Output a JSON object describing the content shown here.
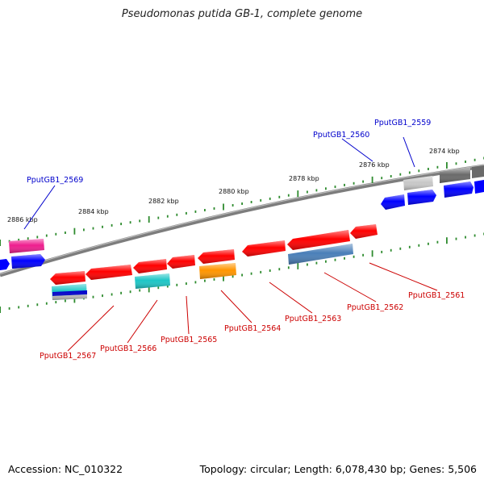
{
  "header": {
    "title": "Pseudomonas putida GB-1, complete genome"
  },
  "footer": {
    "accession": "Accession: NC_010322",
    "topology": "Topology: circular; Length: 6,078,430 bp; Genes: 5,506"
  },
  "map": {
    "ticks": [
      {
        "label": "2874 kbp"
      },
      {
        "label": "2876 kbp"
      },
      {
        "label": "2878 kbp"
      },
      {
        "label": "2880 kbp"
      },
      {
        "label": "2882 kbp"
      },
      {
        "label": "2884 kbp"
      },
      {
        "label": "2886 kbp"
      }
    ],
    "gene_labels_upper": [
      "PputGB1_2559",
      "PputGB1_2560",
      "PputGB1_2569"
    ],
    "gene_labels_lower": [
      "PputGB1_2561",
      "PputGB1_2562",
      "PputGB1_2563",
      "PputGB1_2564",
      "PputGB1_2565",
      "PputGB1_2566",
      "PputGB1_2567"
    ],
    "colors": {
      "backbone": "#808080",
      "tick": "#2e8b2e",
      "label_blue": "#0000cc",
      "label_red": "#cc0000",
      "gene_red": "#ff0000",
      "gene_blue": "#0000ff",
      "gene_gray": "#6a6a6a",
      "gene_lightgray": "#c8c8c8",
      "gene_pink": "#ee1e8e",
      "gene_cyan": "#1cc6c6",
      "gene_orange": "#ff9500",
      "gene_steel": "#4a7fb8"
    }
  }
}
